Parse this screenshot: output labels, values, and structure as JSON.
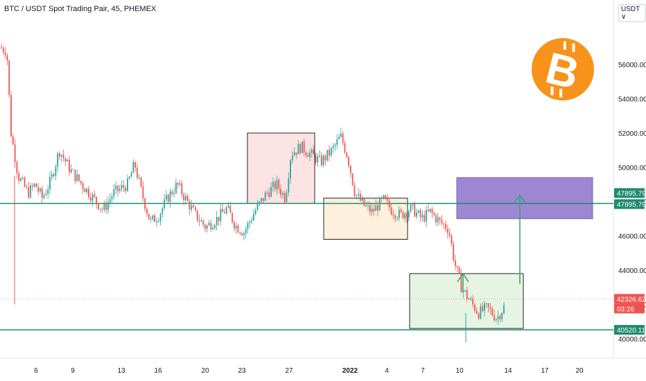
{
  "header": {
    "title": "BTC / USDT Spot Trading Pair, 45, PHEMEX",
    "currency_label": "USDT",
    "currency_arrow": "∨"
  },
  "logo": {
    "name": "bitcoin-logo",
    "glyph": "B",
    "color": "#f7931a"
  },
  "colors": {
    "up": "#26a69a",
    "down": "#ef5350",
    "hline": "#1e8a6e",
    "current": "#ef5350",
    "box_red": "#fce4e4",
    "box_orange": "#fdf0dc",
    "box_green": "#e6f4e4",
    "box_purple": "#9d87d2",
    "arrow": "#3aa37a"
  },
  "chart_data": {
    "type": "candlestick",
    "title": "BTC / USDT Spot Trading Pair, 45, PHEMEX",
    "ylim": [
      38500,
      58500
    ],
    "yticks": [
      40000,
      42000,
      44000,
      46000,
      48000,
      50000,
      52000,
      54000,
      56000
    ],
    "ytick_labels": [
      "40000.00",
      "42000.00",
      "44000.00",
      "46000.00",
      "48000.00",
      "50000.00",
      "52000.00",
      "54000.00",
      "56000.00"
    ],
    "xticks": [
      {
        "label": "6",
        "bold": false
      },
      {
        "label": "9",
        "bold": false
      },
      {
        "label": "13",
        "bold": false
      },
      {
        "label": "16",
        "bold": false
      },
      {
        "label": "20",
        "bold": false
      },
      {
        "label": "23",
        "bold": false
      },
      {
        "label": "27",
        "bold": false
      },
      {
        "label": "2022",
        "bold": true
      },
      {
        "label": "4",
        "bold": false
      },
      {
        "label": "7",
        "bold": false
      },
      {
        "label": "10",
        "bold": false
      },
      {
        "label": "14",
        "bold": false
      },
      {
        "label": "17",
        "bold": false
      },
      {
        "label": "20",
        "bold": false
      }
    ],
    "price_path": [
      [
        57000,
        "3"
      ],
      [
        56800,
        "3.5"
      ],
      [
        52000,
        "3.8"
      ],
      [
        49500,
        "4.3"
      ],
      [
        48500,
        "5"
      ],
      [
        49000,
        "5.5"
      ],
      [
        48200,
        "6"
      ],
      [
        49200,
        "6.6"
      ],
      [
        51000,
        "7.2"
      ],
      [
        49800,
        "8"
      ],
      [
        48800,
        "9"
      ],
      [
        48200,
        "9.6"
      ],
      [
        47500,
        "10.3"
      ],
      [
        48500,
        "11"
      ],
      [
        49000,
        "12"
      ],
      [
        50200,
        "12.5"
      ],
      [
        48500,
        "13"
      ],
      [
        46800,
        "13.6"
      ],
      [
        47200,
        "14.2"
      ],
      [
        48200,
        "14.8"
      ],
      [
        49000,
        "15.5"
      ],
      [
        48000,
        "16.2"
      ],
      [
        47200,
        "16.8"
      ],
      [
        46500,
        "17.5"
      ],
      [
        47000,
        "18.3"
      ],
      [
        47600,
        "19"
      ],
      [
        46600,
        "19.6"
      ],
      [
        46200,
        "20.2"
      ],
      [
        47500,
        "21"
      ],
      [
        48500,
        "21.8"
      ],
      [
        49000,
        "22.5"
      ],
      [
        48200,
        "23.1"
      ],
      [
        50800,
        "23.5"
      ],
      [
        51200,
        "24.2"
      ],
      [
        50700,
        "25"
      ],
      [
        50300,
        "25.6"
      ],
      [
        51000,
        "26.4"
      ],
      [
        51800,
        "27"
      ],
      [
        50600,
        "27.5"
      ],
      [
        48500,
        "28"
      ],
      [
        47800,
        "28.6"
      ],
      [
        47400,
        "29.2"
      ],
      [
        48100,
        "30"
      ],
      [
        47500,
        "30.6"
      ],
      [
        47200,
        "31.2"
      ],
      [
        47600,
        "32"
      ],
      [
        47000,
        "32.7"
      ],
      [
        47400,
        "33.3"
      ],
      [
        46800,
        "34"
      ],
      [
        46400,
        "34.6"
      ],
      [
        44500,
        "35"
      ],
      [
        43000,
        "35.5"
      ],
      [
        42200,
        "36.1"
      ],
      [
        41500,
        "36.7"
      ],
      [
        41800,
        "37.3"
      ],
      [
        41200,
        "38"
      ],
      [
        42000,
        "38.6"
      ],
      [
        41500,
        "39.2"
      ],
      [
        40800,
        "39.7"
      ],
      [
        41800,
        "40.3"
      ],
      [
        42500,
        "41"
      ],
      [
        43200,
        "41.6"
      ],
      [
        43800,
        "42.2"
      ],
      [
        43500,
        "42.6"
      ],
      [
        42300,
        "43"
      ]
    ],
    "hlines": [
      {
        "value": 47895.79,
        "label": "47895.79",
        "label2": "47895.79"
      },
      {
        "value": 40520.11,
        "label": "40520.11"
      }
    ],
    "current_price": {
      "value": 42326.62,
      "label": "42326.62",
      "countdown": "03:26"
    },
    "annotations": [
      {
        "kind": "box",
        "color": "red",
        "y1": 47900,
        "y2": 52000
      },
      {
        "kind": "box",
        "color": "orange",
        "y1": 45800,
        "y2": 48200
      },
      {
        "kind": "box",
        "color": "green",
        "y1": 40600,
        "y2": 43800
      },
      {
        "kind": "box",
        "color": "purple",
        "y1": 47000,
        "y2": 49400
      },
      {
        "kind": "arrow",
        "y1": 43200,
        "y2": 48400
      },
      {
        "kind": "arrow",
        "y1": 42700,
        "y2": 43800
      }
    ]
  }
}
